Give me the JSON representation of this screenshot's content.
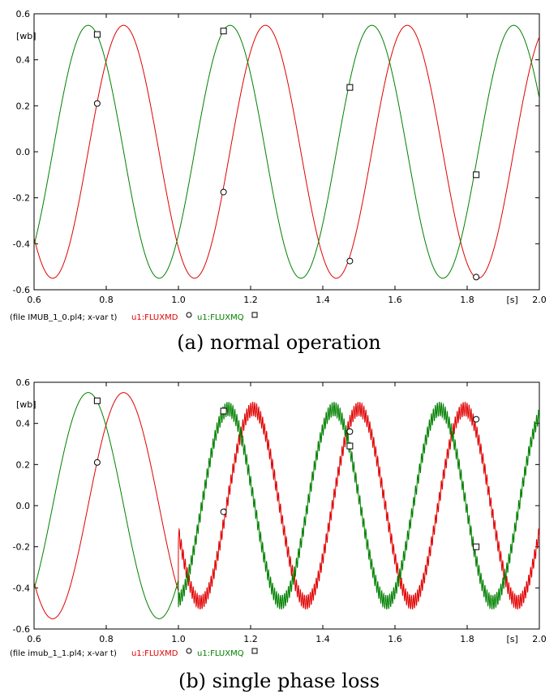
{
  "chart_data": [
    {
      "type": "line",
      "caption": "(a) normal operation",
      "ylabel": "[wb]",
      "xlabel": "[s]",
      "xlim": [
        0.6,
        2.0
      ],
      "ylim": [
        -0.6,
        0.6
      ],
      "xticks": [
        0.6,
        0.8,
        1.0,
        1.2,
        1.4,
        1.6,
        1.8,
        2.0
      ],
      "xtick_labels": [
        "0.6",
        "0.8",
        "1.0",
        "1.2",
        "1.4",
        "1.6",
        "1.8",
        "2.0"
      ],
      "yticks": [
        0.6,
        0.4,
        0.2,
        0.0,
        -0.2,
        -0.4,
        -0.6
      ],
      "ytick_labels": [
        "0.6",
        "0.4",
        "0.2",
        "0.0",
        "-0.2",
        "-0.4",
        "-0.6"
      ],
      "grid": false,
      "footer": {
        "file": "(file IMUB_1_0.pl4; x-var t)",
        "series_d_label": "u1:FLUXMD",
        "series_q_label": "u1:FLUXMQ"
      },
      "series": [
        {
          "name": "u1:FLUXMD",
          "color": "#e00000",
          "marker": "circle",
          "amplitude": 0.55,
          "period": 0.393,
          "peak_time": 0.848,
          "ripple": {
            "start": 2.0,
            "amplitude": 0.0
          },
          "markers": [
            [
              0.775,
              0.21
            ],
            [
              1.125,
              -0.175
            ],
            [
              1.475,
              -0.475
            ],
            [
              1.825,
              -0.545
            ]
          ]
        },
        {
          "name": "u1:FLUXMQ",
          "color": "#008000",
          "marker": "square",
          "amplitude": 0.55,
          "period": 0.393,
          "peak_time": 0.75,
          "ripple": {
            "start": 2.0,
            "amplitude": 0.0
          },
          "markers": [
            [
              0.775,
              0.51
            ],
            [
              1.125,
              0.525
            ],
            [
              1.475,
              0.28
            ],
            [
              1.825,
              -0.1
            ]
          ]
        }
      ]
    },
    {
      "type": "line",
      "caption": "(b) single phase loss",
      "ylabel": "[wb]",
      "xlabel": "[s]",
      "xlim": [
        0.6,
        2.0
      ],
      "ylim": [
        -0.6,
        0.6
      ],
      "xticks": [
        0.6,
        0.8,
        1.0,
        1.2,
        1.4,
        1.6,
        1.8,
        2.0
      ],
      "xtick_labels": [
        "0.6",
        "0.8",
        "1.0",
        "1.2",
        "1.4",
        "1.6",
        "1.8",
        "2.0"
      ],
      "yticks": [
        0.6,
        0.4,
        0.2,
        0.0,
        -0.2,
        -0.4,
        -0.6
      ],
      "ytick_labels": [
        "0.6",
        "0.4",
        "0.2",
        "0.0",
        "-0.2",
        "-0.4",
        "-0.6"
      ],
      "grid": false,
      "footer": {
        "file": "(file imub_1_1.pl4; x-var t)",
        "series_d_label": "u1:FLUXMD",
        "series_q_label": "u1:FLUXMQ"
      },
      "series": [
        {
          "name": "u1:FLUXMD",
          "color": "#e00000",
          "marker": "circle",
          "amplitude": 0.55,
          "period": 0.393,
          "peak_time": 0.848,
          "after": {
            "start": 1.0,
            "amplitude": 0.47,
            "period": 0.293,
            "peak_time": 1.207,
            "ripple_amplitude": 0.035
          },
          "markers": [
            [
              0.775,
              0.21
            ],
            [
              1.125,
              -0.03
            ],
            [
              1.475,
              0.36
            ],
            [
              1.825,
              0.42
            ]
          ]
        },
        {
          "name": "u1:FLUXMQ",
          "color": "#008000",
          "marker": "square",
          "amplitude": 0.55,
          "period": 0.393,
          "peak_time": 0.75,
          "after": {
            "start": 1.0,
            "amplitude": 0.47,
            "period": 0.293,
            "peak_time": 1.138,
            "ripple_amplitude": 0.035
          },
          "markers": [
            [
              0.775,
              0.51
            ],
            [
              1.125,
              0.46
            ],
            [
              1.475,
              0.29
            ],
            [
              1.825,
              -0.2
            ]
          ]
        }
      ]
    }
  ]
}
